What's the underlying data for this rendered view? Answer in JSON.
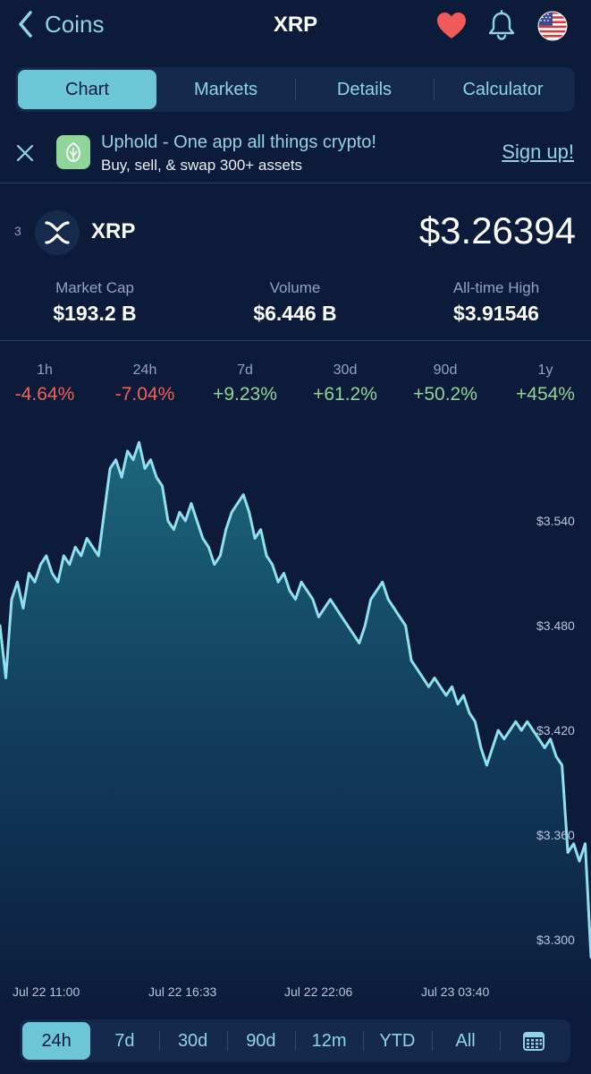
{
  "header": {
    "back_label": "Coins",
    "title": "XRP",
    "icons": [
      "heart-icon",
      "bell-icon",
      "us-flag-icon"
    ]
  },
  "tabs": [
    {
      "label": "Chart",
      "active": true
    },
    {
      "label": "Markets",
      "active": false
    },
    {
      "label": "Details",
      "active": false
    },
    {
      "label": "Calculator",
      "active": false
    }
  ],
  "banner": {
    "title": "Uphold - One app all things crypto!",
    "subtitle": "Buy, sell, & swap 300+ assets",
    "cta": "Sign up!"
  },
  "coin": {
    "rank": "3",
    "name": "XRP",
    "price": "$3.26394"
  },
  "stats": [
    {
      "label": "Market Cap",
      "value": "$193.2 B"
    },
    {
      "label": "Volume",
      "value": "$6.446 B"
    },
    {
      "label": "All-time High",
      "value": "$3.91546"
    }
  ],
  "changes": [
    {
      "period": "1h",
      "value": "-4.64%",
      "direction": "down"
    },
    {
      "period": "24h",
      "value": "-7.04%",
      "direction": "down"
    },
    {
      "period": "7d",
      "value": "+9.23%",
      "direction": "up"
    },
    {
      "period": "30d",
      "value": "+61.2%",
      "direction": "up"
    },
    {
      "period": "90d",
      "value": "+50.2%",
      "direction": "up"
    },
    {
      "period": "1y",
      "value": "+454%",
      "direction": "up"
    }
  ],
  "colors": {
    "background": "#0c1b3a",
    "accent": "#6cc6d6",
    "line": "#8fe1ee",
    "negative": "#f0605c",
    "positive": "#8ed59a"
  },
  "chart_data": {
    "type": "area",
    "y_ticks": [
      "$3.540",
      "$3.480",
      "$3.420",
      "$3.360",
      "$3.300"
    ],
    "y_tick_values": [
      3.54,
      3.48,
      3.42,
      3.36,
      3.3
    ],
    "x_ticks": [
      "Jul 22 11:00",
      "Jul 22 16:33",
      "Jul 22 22:06",
      "Jul 23 03:40"
    ],
    "ylim": [
      3.26,
      3.62
    ],
    "series": [
      {
        "values": [
          3.48,
          3.45,
          3.495,
          3.505,
          3.49,
          3.51,
          3.505,
          3.515,
          3.52,
          3.51,
          3.505,
          3.52,
          3.515,
          3.525,
          3.52,
          3.53,
          3.525,
          3.52,
          3.545,
          3.57,
          3.575,
          3.565,
          3.58,
          3.575,
          3.585,
          3.57,
          3.575,
          3.565,
          3.56,
          3.54,
          3.535,
          3.545,
          3.54,
          3.55,
          3.54,
          3.53,
          3.525,
          3.515,
          3.52,
          3.535,
          3.545,
          3.55,
          3.555,
          3.545,
          3.53,
          3.535,
          3.52,
          3.515,
          3.505,
          3.51,
          3.5,
          3.495,
          3.505,
          3.5,
          3.495,
          3.485,
          3.49,
          3.495,
          3.49,
          3.485,
          3.48,
          3.475,
          3.47,
          3.48,
          3.495,
          3.5,
          3.505,
          3.495,
          3.49,
          3.485,
          3.48,
          3.46,
          3.455,
          3.45,
          3.445,
          3.45,
          3.445,
          3.44,
          3.445,
          3.435,
          3.44,
          3.43,
          3.425,
          3.41,
          3.4,
          3.41,
          3.42,
          3.415,
          3.42,
          3.425,
          3.42,
          3.425,
          3.42,
          3.415,
          3.41,
          3.415,
          3.405,
          3.4,
          3.35,
          3.355,
          3.345,
          3.355,
          3.29
        ]
      }
    ]
  }
}
